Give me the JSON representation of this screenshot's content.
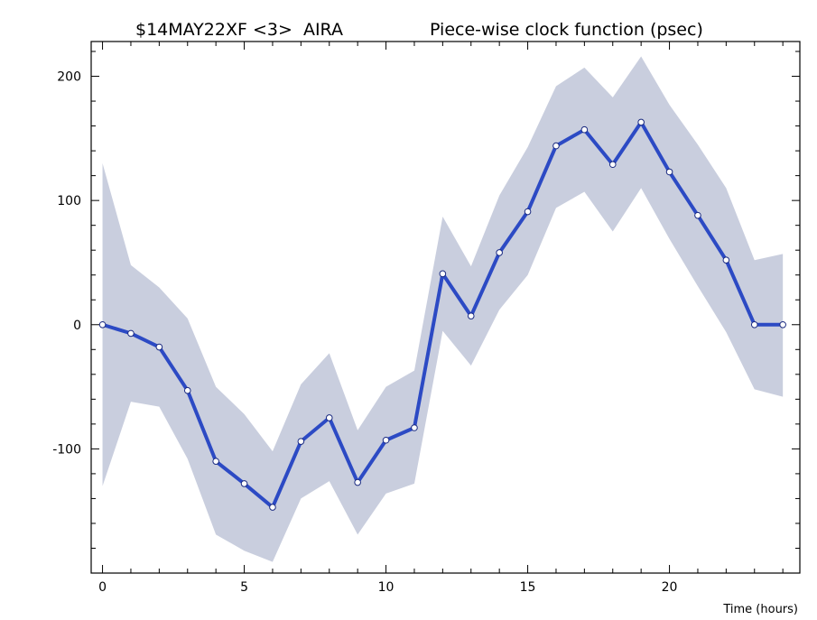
{
  "chart_data": {
    "type": "line",
    "title_left": "$14MAY22XF <3>  AIRA",
    "title_right": "Piece-wise clock function (psec)",
    "xlabel": "Time (hours)",
    "ylabel": "",
    "xlim": [
      -0.4,
      24.6
    ],
    "ylim": [
      -200,
      228
    ],
    "xticks": [
      0,
      5,
      10,
      15,
      20
    ],
    "yticks": [
      -100,
      0,
      100,
      200
    ],
    "x": [
      0,
      1,
      2,
      3,
      4,
      5,
      6,
      7,
      8,
      9,
      10,
      11,
      12,
      13,
      14,
      15,
      16,
      17,
      18,
      19,
      20,
      21,
      22,
      23,
      24
    ],
    "series": [
      {
        "values": [
          0,
          -7,
          -18,
          -53,
          -110,
          -128,
          -147,
          -94,
          -75,
          -127,
          -93,
          -83,
          41,
          7,
          58,
          91,
          144,
          157,
          129,
          163,
          123,
          88,
          52,
          0,
          0
        ]
      }
    ],
    "band_upper": [
      130,
      48,
      30,
      5,
      -50,
      -72,
      -102,
      -48,
      -23,
      -85,
      -50,
      -37,
      87,
      47,
      104,
      143,
      192,
      207,
      183,
      216,
      177,
      145,
      110,
      52,
      57
    ],
    "band_lower": [
      -130,
      -62,
      -66,
      -108,
      -169,
      -182,
      -191,
      -140,
      -126,
      -169,
      -136,
      -128,
      -5,
      -33,
      12,
      40,
      94,
      107,
      75,
      110,
      69,
      31,
      -6,
      -52,
      -58
    ],
    "grid": false,
    "colors": {
      "line": "#2c4ac4",
      "band": "#c9cede",
      "marker_fill": "#ffffff",
      "marker_stroke": "#1a2a80",
      "axis": "#000000"
    }
  }
}
